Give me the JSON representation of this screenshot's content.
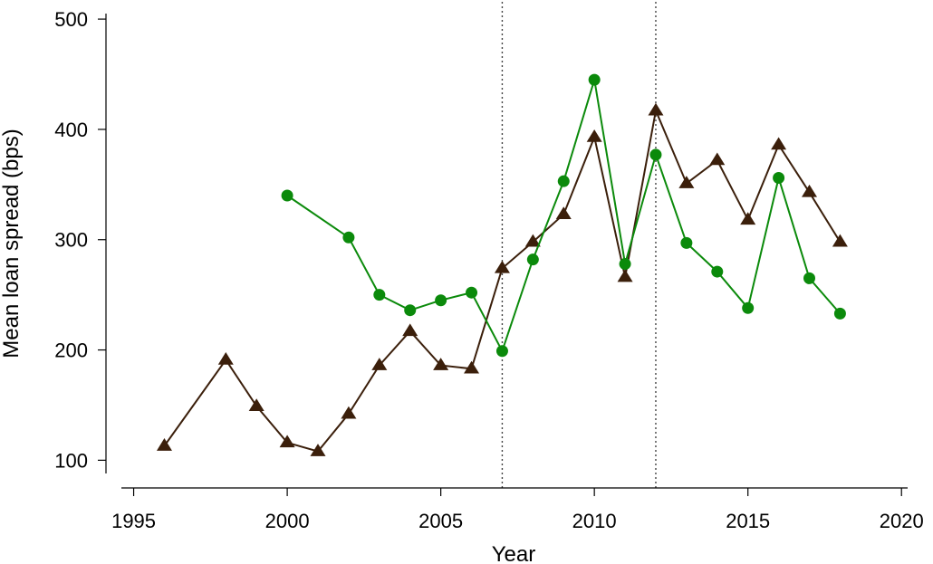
{
  "chart_data": {
    "type": "line",
    "xlabel": "Year",
    "ylabel": "Mean loan spread (bps)",
    "xlim": [
      1994.6,
      2020.2
    ],
    "ylim": [
      88,
      505
    ],
    "x_ticks": [
      1995,
      2000,
      2005,
      2010,
      2015,
      2020
    ],
    "x_tick_labels": [
      "1995",
      "2000",
      "2005",
      "2010",
      "2015",
      "2020"
    ],
    "y_ticks": [
      100,
      200,
      300,
      400,
      500
    ],
    "y_tick_labels": [
      "100",
      "200",
      "300",
      "400",
      "500"
    ],
    "reference_lines_x": [
      2007,
      2012
    ],
    "grid": false,
    "series": [
      {
        "marker": "triangle",
        "color": "#3b1f0b",
        "points": [
          [
            1996,
            113
          ],
          [
            1998,
            191
          ],
          [
            1999,
            149
          ],
          [
            2000,
            116
          ],
          [
            2001,
            108
          ],
          [
            2002,
            142
          ],
          [
            2003,
            186
          ],
          [
            2004,
            217
          ],
          [
            2005,
            186
          ],
          [
            2006,
            183
          ],
          [
            2007,
            274
          ],
          [
            2008,
            298
          ],
          [
            2009,
            323
          ],
          [
            2010,
            393
          ],
          [
            2011,
            266
          ],
          [
            2012,
            417
          ],
          [
            2013,
            351
          ],
          [
            2014,
            372
          ],
          [
            2015,
            318
          ],
          [
            2016,
            386
          ],
          [
            2017,
            343
          ],
          [
            2018,
            298
          ]
        ]
      },
      {
        "marker": "circle",
        "color": "#0b8a0b",
        "points": [
          [
            2000,
            340
          ],
          [
            2002,
            302
          ],
          [
            2003,
            250
          ],
          [
            2004,
            236
          ],
          [
            2005,
            245
          ],
          [
            2006,
            252
          ],
          [
            2007,
            199
          ],
          [
            2008,
            282
          ],
          [
            2009,
            353
          ],
          [
            2010,
            445
          ],
          [
            2011,
            278
          ],
          [
            2012,
            377
          ],
          [
            2013,
            297
          ],
          [
            2014,
            271
          ],
          [
            2015,
            238
          ],
          [
            2016,
            356
          ],
          [
            2017,
            265
          ],
          [
            2018,
            233
          ]
        ]
      }
    ]
  }
}
